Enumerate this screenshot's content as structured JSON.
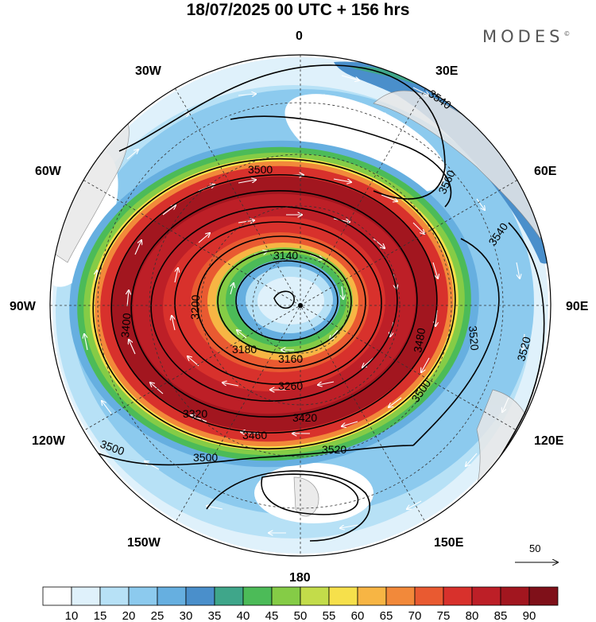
{
  "title": "18/07/2025  00 UTC  + 156 hrs",
  "brand": {
    "name": "MODES",
    "mark": "©"
  },
  "map": {
    "projection": "south polar stereographic",
    "longitude_labels": [
      "0",
      "30E",
      "60E",
      "90E",
      "120E",
      "150E",
      "180",
      "150W",
      "120W",
      "90W",
      "60W",
      "30W"
    ],
    "contour_labels": [
      "3140",
      "3160",
      "3180",
      "3200",
      "3260",
      "3320",
      "3400",
      "3420",
      "3460",
      "3480",
      "3500",
      "3520",
      "3540",
      "3560"
    ],
    "reference_vector": {
      "label": "50"
    }
  },
  "colorbar": {
    "ticks": [
      "10",
      "15",
      "20",
      "25",
      "30",
      "35",
      "40",
      "45",
      "50",
      "55",
      "60",
      "65",
      "70",
      "75",
      "80",
      "85",
      "90"
    ],
    "colors": [
      "#ffffff",
      "#dff1fb",
      "#b7e1f6",
      "#8ccaee",
      "#66afe0",
      "#4a8fcb",
      "#3fa68a",
      "#4cbb58",
      "#85cc46",
      "#c3dc4a",
      "#f6e04b",
      "#f7b544",
      "#f2893a",
      "#e95a31",
      "#d8312c",
      "#bd1f27",
      "#a2161f",
      "#7f1019"
    ]
  }
}
